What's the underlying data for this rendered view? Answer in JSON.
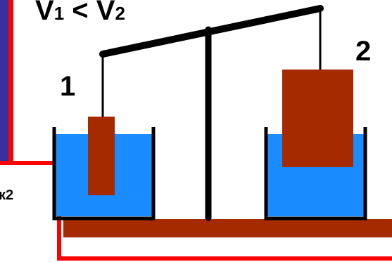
{
  "formula": {
    "v1": "V",
    "sub1": "1",
    "op": " < ",
    "v2": "V",
    "sub2": "2"
  },
  "labels": {
    "body1": "1",
    "body2": "2",
    "side_fragment": "к2"
  },
  "colors": {
    "body_fill": "#a52a00",
    "water": "#1a8cff",
    "side_frame": "#ff0000",
    "side_strip": "#3a2fa0",
    "beam": "#000000"
  }
}
